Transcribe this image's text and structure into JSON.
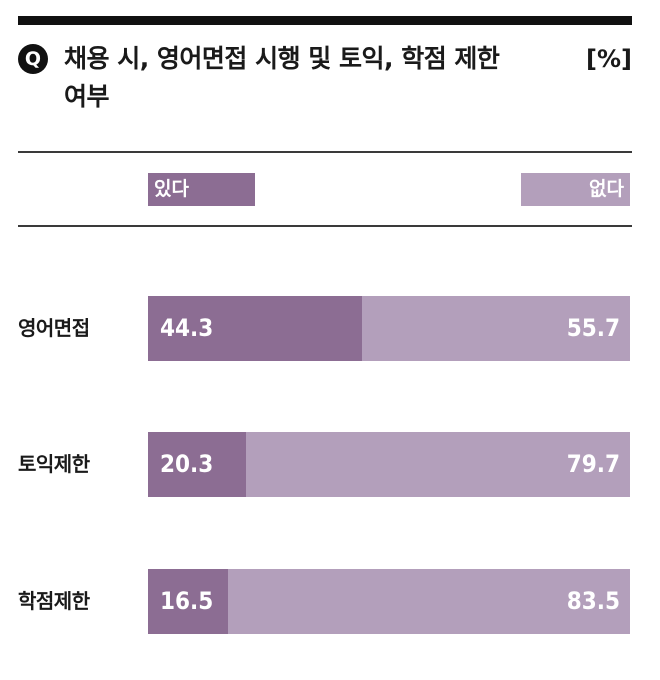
{
  "badge": "Q",
  "title": "채용 시, 영어면접 시행 및 토익, 학점 제한 여부",
  "unit": "[%]",
  "colors": {
    "yes": "#8c6d93",
    "no": "#b39fbb",
    "rule": "#111111"
  },
  "chart_data": {
    "type": "bar",
    "orientation": "horizontal",
    "stacked": true,
    "title": "채용 시, 영어면접 시행 및 토익, 학점 제한 여부",
    "unit": "[%]",
    "categories": [
      "영어면접",
      "토익제한",
      "학점제한"
    ],
    "series": [
      {
        "name": "있다",
        "values": [
          44.3,
          20.3,
          16.5
        ]
      },
      {
        "name": "없다",
        "values": [
          55.7,
          79.7,
          83.5
        ]
      }
    ],
    "value_labels": {
      "yes": [
        "44.3",
        "20.3",
        "16.5"
      ],
      "no": [
        "55.7",
        "79.7",
        "83.5"
      ]
    },
    "xlim": [
      0,
      100
    ],
    "grid": false,
    "legend": "top"
  }
}
